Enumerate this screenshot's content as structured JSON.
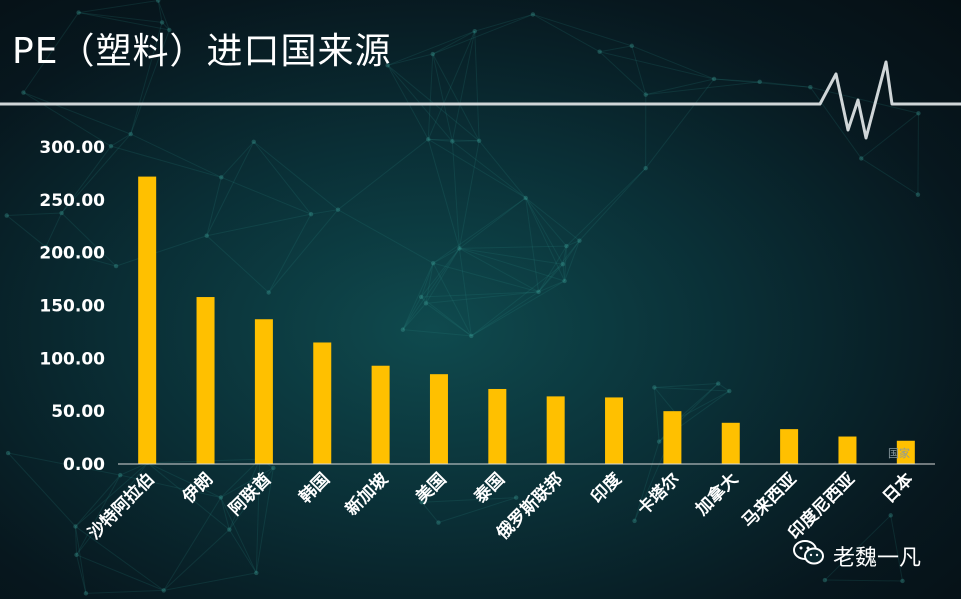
{
  "title": "PE（塑料）进口国来源",
  "footer": {
    "label": "老魏一凡",
    "icon": "wechat-icon"
  },
  "colors": {
    "bar": "#FFC000",
    "axis": "#d9d9d9",
    "line": "#d0d6d8",
    "text": "#ffffff"
  },
  "chart_data": {
    "type": "bar",
    "title": "",
    "xlabel": "国家",
    "ylabel": "",
    "categories": [
      "沙特阿拉伯",
      "伊朗",
      "阿联酋",
      "韩国",
      "新加坡",
      "美国",
      "泰国",
      "俄罗斯联邦",
      "印度",
      "卡塔尔",
      "加拿大",
      "马来西亚",
      "印度尼西亚",
      "日本"
    ],
    "values": [
      272,
      158,
      137,
      115,
      93,
      85,
      71,
      64,
      63,
      50,
      39,
      33,
      26,
      22
    ],
    "ylim": [
      0,
      300
    ],
    "yticks": [
      "0.00",
      "50.00",
      "100.00",
      "150.00",
      "200.00",
      "250.00",
      "300.00"
    ],
    "grid": false,
    "legend": "none"
  }
}
